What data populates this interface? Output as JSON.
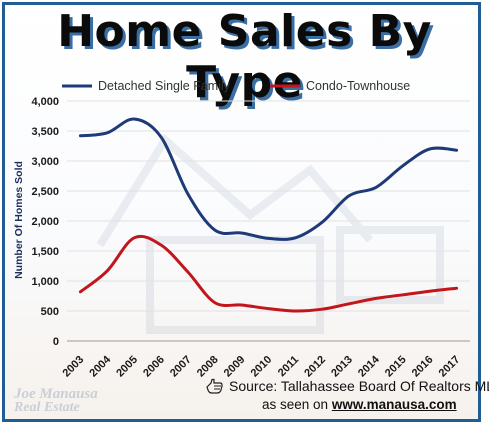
{
  "chart_data": {
    "type": "line",
    "title": "Home Sales By Type",
    "ylabel": "Number Of Homes Sold",
    "xlabel": "",
    "x": [
      "2003",
      "2004",
      "2005",
      "2006",
      "2007",
      "2008",
      "2009",
      "2010",
      "2011",
      "2012",
      "2013",
      "2014",
      "2015",
      "2016",
      "2017"
    ],
    "ylim": [
      0,
      4000
    ],
    "yticks": [
      "0",
      "500",
      "1,000",
      "1,500",
      "2,000",
      "2,500",
      "3,000",
      "3,500",
      "4,000"
    ],
    "ytick_values": [
      0,
      500,
      1000,
      1500,
      2000,
      2500,
      3000,
      3500,
      4000
    ],
    "grid": true,
    "legend_position": "top",
    "series": [
      {
        "name": "Detached Single Family",
        "color": "#1e3a78",
        "values": [
          3420,
          3470,
          3700,
          3400,
          2450,
          1850,
          1800,
          1710,
          1720,
          1980,
          2420,
          2560,
          2920,
          3200,
          3180
        ]
      },
      {
        "name": "Condo-Townhouse",
        "color": "#c0161c",
        "values": [
          820,
          1170,
          1720,
          1600,
          1150,
          640,
          600,
          540,
          500,
          530,
          620,
          710,
          770,
          830,
          880
        ]
      }
    ]
  },
  "footer": {
    "source_text": "Source: Tallahassee Board Of Realtors MLS",
    "seen_prefix": "as seen on ",
    "seen_url": "www.manausa.com",
    "logo_line1": "Joe Manausa",
    "logo_line2": "Real Estate",
    "hand_icon": "pointing-hand-icon"
  }
}
